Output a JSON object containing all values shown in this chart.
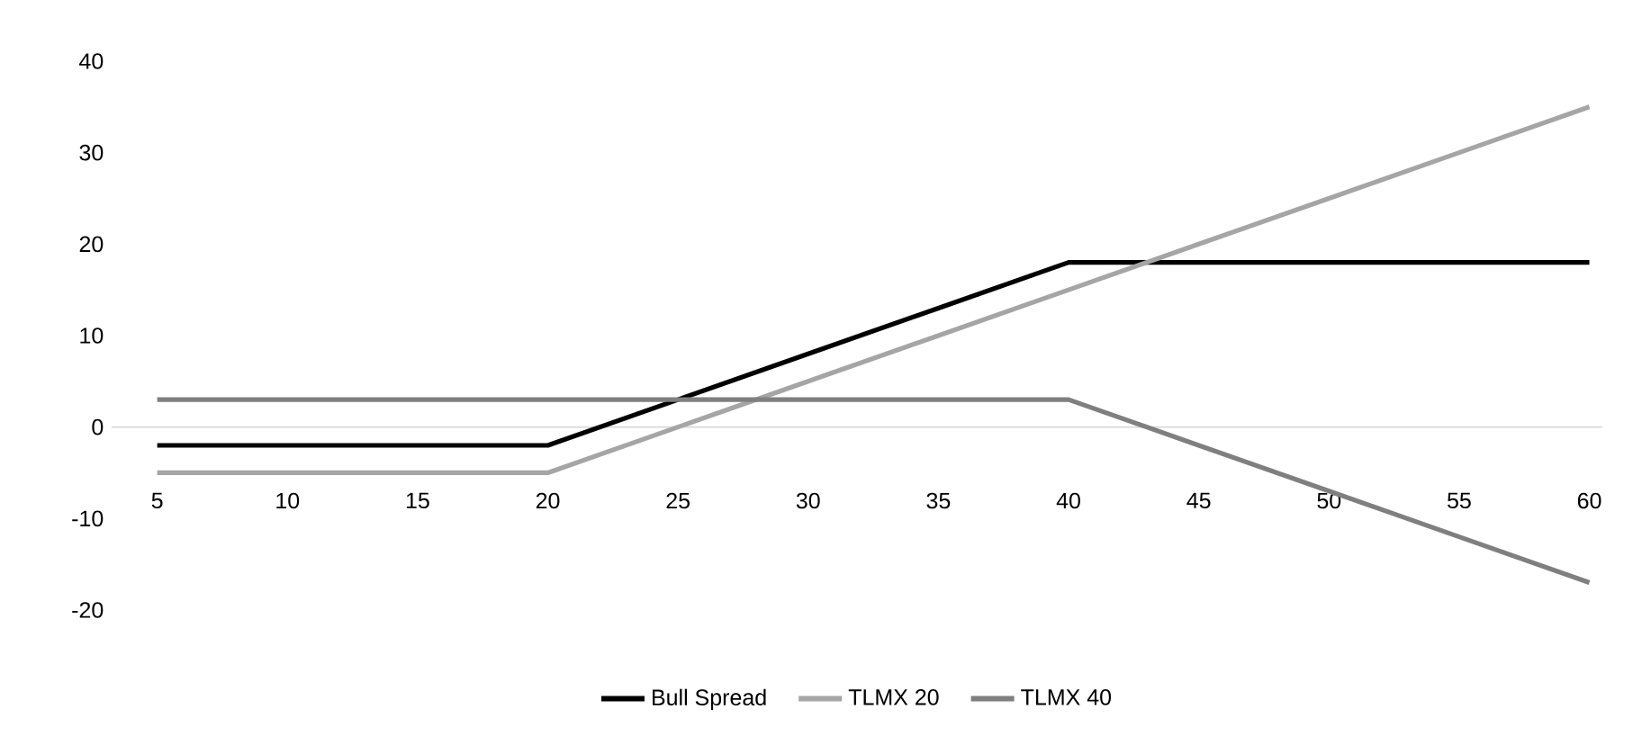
{
  "chart_data": {
    "type": "line",
    "categories": [
      "5",
      "10",
      "15",
      "20",
      "25",
      "30",
      "35",
      "40",
      "45",
      "50",
      "55",
      "60"
    ],
    "series": [
      {
        "name": "Bull Spread",
        "color": "#000000",
        "values": [
          -2,
          -2,
          -2,
          -2,
          3,
          8,
          13,
          18,
          18,
          18,
          18,
          18
        ]
      },
      {
        "name": "TLMX 20",
        "color": "#a5a5a5",
        "values": [
          -5,
          -5,
          -5,
          -5,
          0,
          5,
          10,
          15,
          20,
          25,
          30,
          35
        ]
      },
      {
        "name": "TLMX 40",
        "color": "#7f7f7f",
        "values": [
          3,
          3,
          3,
          3,
          3,
          3,
          3,
          3,
          -2,
          -7,
          -12,
          -17
        ]
      }
    ],
    "ylim": [
      -20,
      40
    ],
    "yticks": [
      -20,
      -10,
      0,
      10,
      20,
      30,
      40
    ],
    "legend": "bottom",
    "marker": "none",
    "line_style": "solid"
  }
}
